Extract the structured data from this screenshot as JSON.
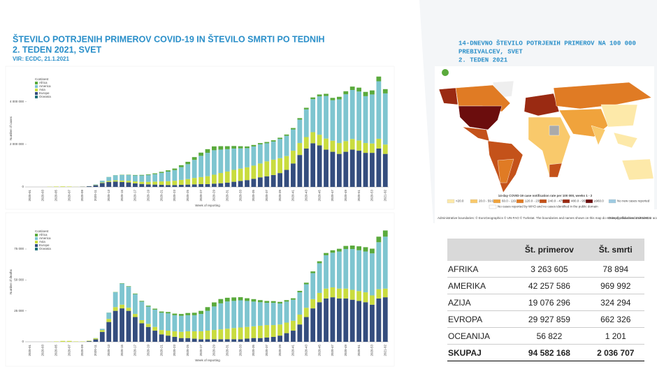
{
  "header": {
    "title_lines": [
      "ŠTEVILO POTRJENIH PRIMEROV COVID-19 IN ŠTEVILO SMRTI PO TEDNIH",
      "2. TEDEN 2021, SVET"
    ],
    "source": "VIR: ECDC, 21.1.2021"
  },
  "chart_data": [
    {
      "type": "bar",
      "stacked": true,
      "ylabel": "Number of cases",
      "xlabel": "Week of reporting",
      "legend_title": "Continent",
      "grid": false,
      "categories": [
        "2020-01",
        null,
        "2020-03",
        null,
        "2020-05",
        null,
        "2020-07",
        null,
        "2020-09",
        null,
        "2020-11",
        null,
        "2020-13",
        null,
        "2020-15",
        null,
        "2020-17",
        null,
        "2020-19",
        null,
        "2020-21",
        null,
        "2020-23",
        null,
        "2020-25",
        null,
        "2020-27",
        null,
        "2020-29",
        null,
        "2020-31",
        null,
        "2020-33",
        null,
        "2020-35",
        null,
        "2020-37",
        null,
        "2020-39",
        null,
        "2020-41",
        null,
        "2020-43",
        null,
        "2020-45",
        null,
        "2020-47",
        null,
        "2020-49",
        null,
        "2020-51",
        null,
        "2020-53",
        null,
        "2021-02"
      ],
      "ylim": [
        0,
        5500000
      ],
      "yticks": [
        0,
        {
          "value": 2000000,
          "label": "2 000 000"
        },
        {
          "value": 4000000,
          "label": "4 000 000"
        }
      ],
      "series": [
        {
          "name": "Africa",
          "color": "#5aaa3c",
          "values": [
            0,
            0,
            0,
            0,
            0,
            0,
            0,
            0,
            0,
            0,
            1000,
            3000,
            5000,
            8000,
            12000,
            15000,
            20000,
            25000,
            30000,
            40000,
            50000,
            60000,
            75000,
            90000,
            110000,
            130000,
            150000,
            170000,
            180000,
            160000,
            140000,
            120000,
            100000,
            80000,
            70000,
            60000,
            60000,
            60000,
            60000,
            60000,
            65000,
            70000,
            75000,
            80000,
            90000,
            100000,
            110000,
            120000,
            140000,
            160000,
            180000,
            200000,
            190000,
            220000,
            200000
          ]
        },
        {
          "name": "America",
          "color": "#7ec5d0",
          "values": [
            0,
            0,
            0,
            0,
            0,
            0,
            0,
            0,
            0,
            5000,
            20000,
            80000,
            180000,
            230000,
            260000,
            270000,
            280000,
            300000,
            320000,
            350000,
            400000,
            450000,
            500000,
            600000,
            700000,
            850000,
            1000000,
            1100000,
            1150000,
            1100000,
            1050000,
            1000000,
            950000,
            900000,
            900000,
            900000,
            850000,
            850000,
            900000,
            950000,
            1000000,
            1100000,
            1300000,
            1550000,
            1800000,
            2000000,
            1900000,
            2050000,
            2200000,
            2300000,
            2300000,
            2200000,
            2300000,
            2700000,
            2400000
          ]
        },
        {
          "name": "Asia",
          "color": "#c9dc3f",
          "values": [
            0,
            0,
            0,
            10000,
            20000,
            25000,
            20000,
            5000,
            5000,
            5000,
            15000,
            30000,
            50000,
            60000,
            70000,
            80000,
            90000,
            100000,
            120000,
            140000,
            160000,
            180000,
            200000,
            230000,
            260000,
            300000,
            330000,
            370000,
            420000,
            480000,
            520000,
            560000,
            580000,
            600000,
            620000,
            650000,
            700000,
            720000,
            700000,
            650000,
            600000,
            560000,
            540000,
            520000,
            500000,
            520000,
            520000,
            510000,
            500000,
            500000,
            480000,
            460000,
            440000,
            460000,
            440000
          ]
        },
        {
          "name": "Europe",
          "color": "#344d7e",
          "values": [
            0,
            0,
            0,
            0,
            0,
            0,
            0,
            0,
            10000,
            30000,
            80000,
            180000,
            230000,
            250000,
            230000,
            210000,
            170000,
            140000,
            120000,
            110000,
            100000,
            90000,
            90000,
            100000,
            110000,
            120000,
            130000,
            130000,
            150000,
            170000,
            200000,
            240000,
            280000,
            320000,
            380000,
            450000,
            500000,
            560000,
            650000,
            800000,
            1100000,
            1500000,
            1800000,
            2050000,
            1950000,
            1750000,
            1650000,
            1550000,
            1650000,
            1750000,
            1700000,
            1600000,
            1600000,
            1800000,
            1550000
          ]
        },
        {
          "name": "Oceania",
          "color": "#1f6f78",
          "values": [
            0,
            0,
            0,
            0,
            0,
            0,
            0,
            0,
            0,
            0,
            200,
            1500,
            3000,
            2000,
            800,
            300,
            100,
            100,
            100,
            100,
            100,
            100,
            100,
            100,
            200,
            500,
            1200,
            2500,
            3500,
            3500,
            3000,
            2000,
            1200,
            700,
            500,
            400,
            300,
            300,
            400,
            500,
            400,
            400,
            400,
            500,
            500,
            400,
            400,
            400,
            400,
            500,
            600,
            500,
            500,
            500,
            500
          ]
        }
      ]
    },
    {
      "type": "bar",
      "stacked": true,
      "ylabel": "Number of deaths",
      "xlabel": "Week of reporting",
      "legend_title": "Continent",
      "grid": false,
      "categories": [
        "2020-01",
        null,
        "2020-03",
        null,
        "2020-05",
        null,
        "2020-07",
        null,
        "2020-09",
        null,
        "2020-11",
        null,
        "2020-13",
        null,
        "2020-15",
        null,
        "2020-17",
        null,
        "2020-19",
        null,
        "2020-21",
        null,
        "2020-23",
        null,
        "2020-25",
        null,
        "2020-27",
        null,
        "2020-29",
        null,
        "2020-31",
        null,
        "2020-33",
        null,
        "2020-35",
        null,
        "2020-37",
        null,
        "2020-39",
        null,
        "2020-41",
        null,
        "2020-43",
        null,
        "2020-45",
        null,
        "2020-47",
        null,
        "2020-49",
        null,
        "2020-51",
        null,
        "2020-53",
        null,
        "2021-02"
      ],
      "ylim": [
        0,
        97000
      ],
      "yticks": [
        0,
        {
          "value": 25000,
          "label": "25 000"
        },
        {
          "value": 50000,
          "label": "50 000"
        },
        {
          "value": 75000,
          "label": "75 000"
        }
      ],
      "series": [
        {
          "name": "Africa",
          "color": "#5aaa3c",
          "values": [
            0,
            0,
            0,
            0,
            0,
            0,
            0,
            0,
            0,
            0,
            0,
            0,
            100,
            200,
            300,
            400,
            500,
            600,
            700,
            800,
            1000,
            1100,
            1300,
            1500,
            1800,
            2000,
            2500,
            3000,
            3300,
            3500,
            3000,
            2800,
            2500,
            2200,
            2000,
            1700,
            1500,
            1400,
            1300,
            1200,
            1200,
            1200,
            1300,
            1400,
            1600,
            1800,
            2000,
            2200,
            2500,
            2800,
            3200,
            3500,
            3800,
            4500,
            5000
          ]
        },
        {
          "name": "America",
          "color": "#7ec5d0",
          "values": [
            0,
            0,
            0,
            0,
            0,
            0,
            0,
            0,
            0,
            0,
            200,
            1000,
            5000,
            12000,
            17000,
            17000,
            16000,
            15000,
            14000,
            14000,
            14000,
            14000,
            13000,
            13000,
            13000,
            13000,
            14000,
            16000,
            19000,
            21000,
            22000,
            22000,
            22000,
            21000,
            20000,
            19000,
            18000,
            18000,
            17000,
            17000,
            17000,
            18000,
            19000,
            21000,
            24000,
            27000,
            28000,
            30000,
            32000,
            33000,
            33000,
            33000,
            34000,
            38000,
            42000
          ]
        },
        {
          "name": "Asia",
          "color": "#c9dc3f",
          "values": [
            0,
            0,
            0,
            100,
            300,
            700,
            700,
            300,
            300,
            400,
            800,
            1500,
            2500,
            3000,
            3000,
            2500,
            2500,
            2500,
            2500,
            3000,
            3500,
            4000,
            4500,
            5000,
            5500,
            6000,
            6500,
            7000,
            7500,
            8000,
            8500,
            9000,
            9500,
            9500,
            9500,
            10000,
            10000,
            9500,
            9000,
            8500,
            8000,
            8000,
            7500,
            7500,
            7500,
            8000,
            8000,
            8000,
            8000,
            8000,
            8000,
            8000,
            7500,
            7500,
            7000
          ]
        },
        {
          "name": "Europe",
          "color": "#344d7e",
          "values": [
            0,
            0,
            0,
            0,
            0,
            0,
            0,
            0,
            0,
            500,
            2000,
            8000,
            16000,
            25000,
            27000,
            25000,
            20000,
            15000,
            12000,
            9000,
            6000,
            5000,
            4000,
            3000,
            3000,
            2500,
            2000,
            2000,
            2000,
            2000,
            2000,
            2000,
            2000,
            2500,
            3000,
            3000,
            3500,
            4000,
            5000,
            7000,
            9000,
            14000,
            20000,
            27000,
            32000,
            35000,
            36000,
            35000,
            35000,
            34000,
            33000,
            32000,
            30000,
            35000,
            36000
          ]
        },
        {
          "name": "Oceania",
          "color": "#1f6f78",
          "values": [
            0,
            0,
            0,
            0,
            0,
            0,
            0,
            0,
            0,
            0,
            0,
            0,
            0,
            20,
            30,
            20,
            10,
            0,
            0,
            0,
            0,
            0,
            0,
            0,
            0,
            0,
            10,
            30,
            60,
            80,
            100,
            90,
            60,
            30,
            10,
            0,
            0,
            0,
            0,
            0,
            0,
            0,
            0,
            0,
            0,
            0,
            0,
            0,
            0,
            0,
            0,
            0,
            0,
            0,
            0
          ]
        }
      ]
    }
  ],
  "map": {
    "title_lines": [
      "14-DNEVNO ŠTEVILO POTRJENIH PRIMEROV NA 100 000",
      "PREBIVALCEV, SVET",
      "2. TEDEN 2021"
    ],
    "legend_title": "14-day COVID-19 case notification rate per 100 000, weeks 1 - 2",
    "legend_items": [
      {
        "label": "<20.0",
        "color": "#fde9a9"
      },
      {
        "label": "20.0 - 59.9",
        "color": "#f9c96b"
      },
      {
        "label": "60.0 - 119.9",
        "color": "#f0a33c"
      },
      {
        "label": "120.0 - 239.9",
        "color": "#e07b24"
      },
      {
        "label": "240.0 - 479.9",
        "color": "#c4521a"
      },
      {
        "label": "480.0 - 959.9",
        "color": "#9a2a12"
      },
      {
        "label": "≥960.0",
        "color": "#6b0d0d"
      },
      {
        "label": "No new cases reported",
        "color": "#9ecae1"
      }
    ],
    "no_data_label": "No cases reported by WHO and no cases identified in the public domain",
    "footnote": "Administrative boundaries: © EuroGeographics © UN-FAO © Turkstat. The boundaries and names shown on this map do not imply official endorsement or acceptance by the European Union.",
    "production_date": "Date of production: 21/01/2021"
  },
  "table": {
    "header": [
      "Št. primerov",
      "Št. smrti"
    ],
    "rows": [
      [
        "AFRIKA",
        "3 263 605",
        "78 894"
      ],
      [
        "AMERIKA",
        "42 257 586",
        "969 992"
      ],
      [
        "AZIJA",
        "19 076 296",
        "324 294"
      ],
      [
        "EVROPA",
        "29 927 859",
        "662 326"
      ],
      [
        "OCEANIJA",
        "56 822",
        "1 201"
      ]
    ],
    "total": [
      "SKUPAJ",
      "94 582 168",
      "2 036 707"
    ]
  }
}
